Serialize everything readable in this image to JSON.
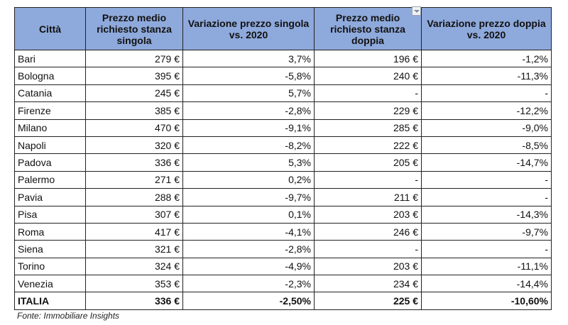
{
  "table": {
    "headers": [
      "Città",
      "Prezzo medio richiesto stanza singola",
      "Variazione prezzo singola vs. 2020",
      "Prezzo medio richiesto stanza doppia",
      "Variazione prezzo doppia vs. 2020"
    ],
    "rows": [
      {
        "city": "Bari",
        "single_price": "279 €",
        "single_var": "3,7%",
        "double_price": "196 €",
        "double_var": "-1,2%"
      },
      {
        "city": "Bologna",
        "single_price": "395 €",
        "single_var": "-5,8%",
        "double_price": "240 €",
        "double_var": "-11,3%"
      },
      {
        "city": "Catania",
        "single_price": "245 €",
        "single_var": "5,7%",
        "double_price": "-",
        "double_var": "-"
      },
      {
        "city": "Firenze",
        "single_price": "385 €",
        "single_var": "-2,8%",
        "double_price": "229 €",
        "double_var": "-12,2%"
      },
      {
        "city": "Milano",
        "single_price": "470 €",
        "single_var": "-9,1%",
        "double_price": "285 €",
        "double_var": "-9,0%"
      },
      {
        "city": "Napoli",
        "single_price": "320 €",
        "single_var": "-8,2%",
        "double_price": "222 €",
        "double_var": "-8,5%"
      },
      {
        "city": "Padova",
        "single_price": "336 €",
        "single_var": "5,3%",
        "double_price": "205 €",
        "double_var": "-14,7%"
      },
      {
        "city": "Palermo",
        "single_price": "271 €",
        "single_var": "0,2%",
        "double_price": "-",
        "double_var": "-"
      },
      {
        "city": "Pavia",
        "single_price": "288 €",
        "single_var": "-9,7%",
        "double_price": "211 €",
        "double_var": "-"
      },
      {
        "city": "Pisa",
        "single_price": "307 €",
        "single_var": "0,1%",
        "double_price": "203 €",
        "double_var": "-14,3%"
      },
      {
        "city": "Roma",
        "single_price": "417 €",
        "single_var": "-4,1%",
        "double_price": "246 €",
        "double_var": "-9,7%"
      },
      {
        "city": "Siena",
        "single_price": "321 €",
        "single_var": "-2,8%",
        "double_price": "-",
        "double_var": "-"
      },
      {
        "city": "Torino",
        "single_price": "324 €",
        "single_var": "-4,9%",
        "double_price": "203 €",
        "double_var": "-11,1%"
      },
      {
        "city": "Venezia",
        "single_price": "353 €",
        "single_var": "-2,3%",
        "double_price": "234 €",
        "double_var": "-14,4%"
      }
    ],
    "total": {
      "city": "ITALIA",
      "single_price": "336 €",
      "single_var": "-2,50%",
      "double_price": "225 €",
      "double_var": "-10,60%"
    }
  },
  "source": "Fonte: Immobiliare Insights",
  "colors": {
    "header_bg": "#8ea9db",
    "border": "#222222"
  },
  "icons": {
    "filter": "filter-dropdown-icon"
  }
}
